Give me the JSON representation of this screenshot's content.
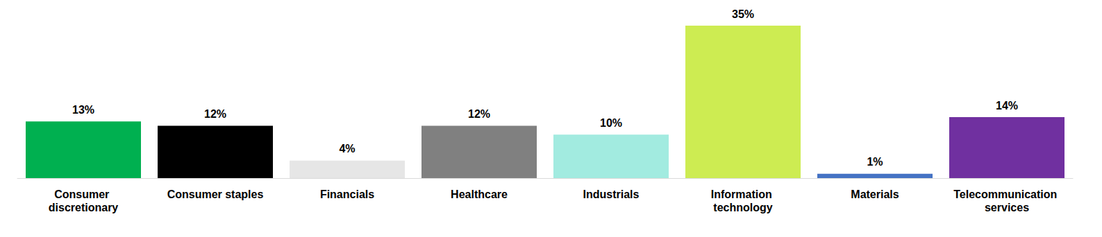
{
  "chart_data": {
    "type": "bar",
    "categories": [
      "Consumer discretionary",
      "Consumer staples",
      "Financials",
      "Healthcare",
      "Industrials",
      "Information technology",
      "Materials",
      "Telecommunication services"
    ],
    "values": [
      13,
      12,
      4,
      12,
      10,
      35,
      1,
      14
    ],
    "value_labels": [
      "13%",
      "12%",
      "4%",
      "12%",
      "10%",
      "35%",
      "1%",
      "14%"
    ],
    "colors": [
      "#00b050",
      "#000000",
      "#e6e6e6",
      "#808080",
      "#a2ebe0",
      "#cdec52",
      "#4472c4",
      "#7030a0"
    ],
    "ylim": [
      0,
      35
    ],
    "grid": false,
    "data_labels": true,
    "tick_labels": "x"
  }
}
